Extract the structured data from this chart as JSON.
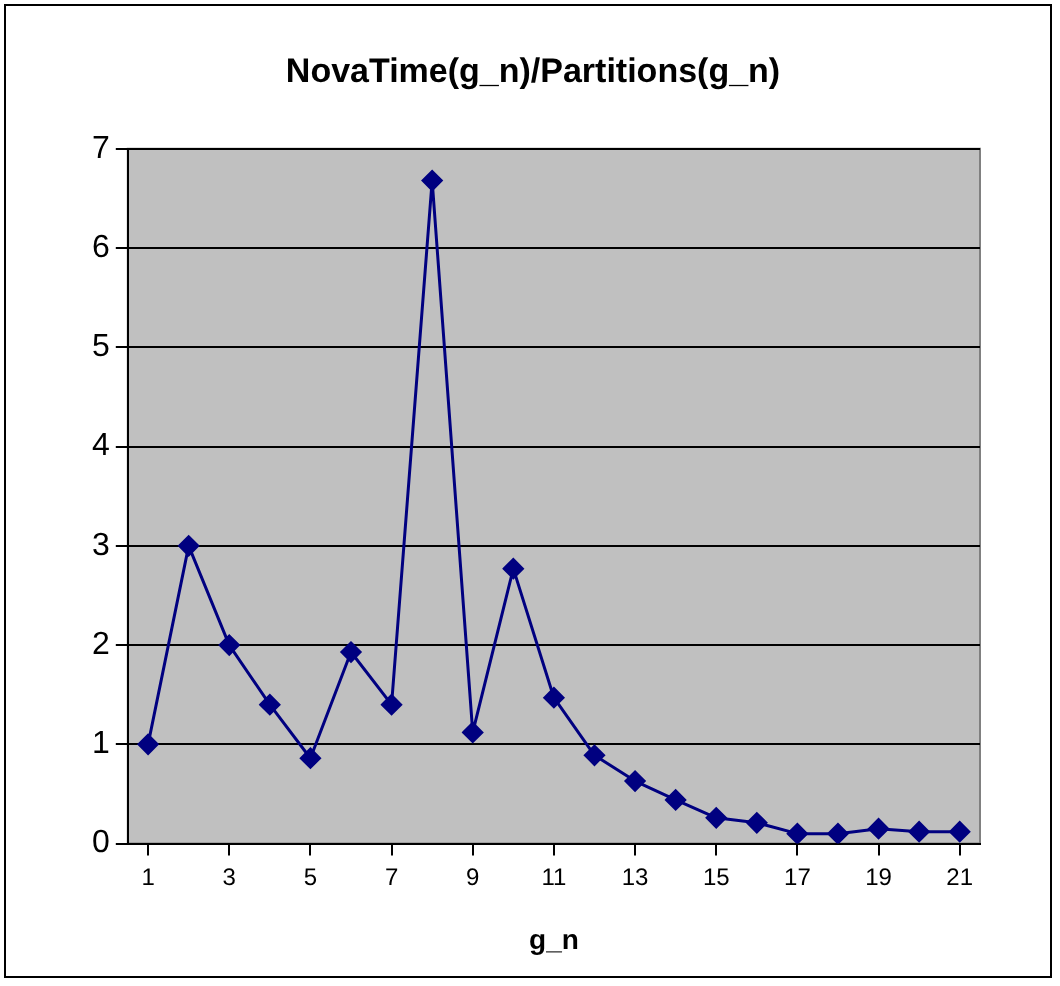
{
  "chart_data": {
    "type": "line",
    "title": "NovaTime(g_n)/Partitions(g_n)",
    "xlabel": "g_n",
    "x": [
      1,
      2,
      3,
      4,
      5,
      6,
      7,
      8,
      9,
      10,
      11,
      12,
      13,
      14,
      15,
      16,
      17,
      18,
      19,
      20,
      21
    ],
    "series": [
      {
        "color": "#000080",
        "values": [
          1.0,
          3.0,
          2.0,
          1.4,
          0.86,
          1.93,
          1.4,
          6.68,
          1.12,
          2.77,
          1.47,
          0.89,
          0.63,
          0.44,
          0.26,
          0.21,
          0.1,
          0.1,
          0.15,
          0.12,
          0.12
        ]
      }
    ],
    "xlim": [
      0.5,
      21.5
    ],
    "xticks": [
      1,
      3,
      5,
      7,
      9,
      11,
      13,
      15,
      17,
      19,
      21
    ],
    "ylim": [
      0,
      7
    ],
    "yticks": [
      0,
      1,
      2,
      3,
      4,
      5,
      6,
      7
    ],
    "grid": "y",
    "legend": false,
    "marker": "diamond",
    "line_style": "solid"
  }
}
